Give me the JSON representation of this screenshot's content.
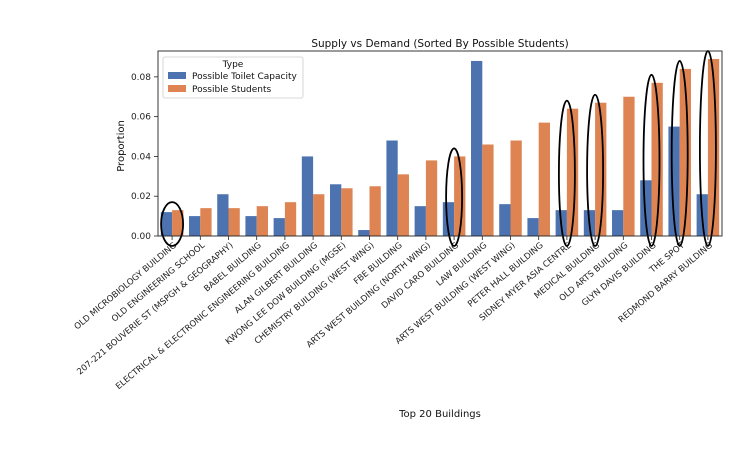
{
  "chart_data": {
    "type": "bar",
    "title": "Supply vs Demand (Sorted By Possible Students)",
    "xlabel": "Top 20 Buildings",
    "ylabel": "Proportion",
    "ylim": [
      0,
      0.093
    ],
    "yticks": [
      "0.00",
      "0.02",
      "0.04",
      "0.06",
      "0.08"
    ],
    "legend": {
      "title": "Type",
      "position": "top-left"
    },
    "categories": [
      "OLD MICROBIOLOGY BUILDING",
      "OLD ENGINEERING SCHOOL",
      "207-221 BOUVERIE ST (MSPGH & GEOGRAPHY)",
      "BABEL BUILDING",
      "ELECTRICAL & ELECTRONIC ENGINEERING BUILDING",
      "ALAN GILBERT BUILDING",
      "KWONG LEE DOW BUILDING (MGSE)",
      "CHEMISTRY BUILDING (WEST WING)",
      "FBE BUILDING",
      "ARTS WEST BUILDING (NORTH WING)",
      "DAVID CARO BUILDING",
      "LAW BUILDING",
      "ARTS WEST BUILDING (WEST WING)",
      "PETER HALL BUILDING",
      "SIDNEY MYER ASIA CENTRE",
      "MEDICAL BUILDING",
      "OLD ARTS BUILDING",
      "GLYN DAVIS BUILDING",
      "THE SPOT",
      "REDMOND BARRY BUILDING"
    ],
    "series": [
      {
        "name": "Possible Toilet Capacity",
        "color": "#4c72b0",
        "values": [
          0.012,
          0.01,
          0.021,
          0.01,
          0.009,
          0.04,
          0.026,
          0.003,
          0.048,
          0.015,
          0.017,
          0.088,
          0.016,
          0.009,
          0.013,
          0.013,
          0.013,
          0.028,
          0.055,
          0.021
        ]
      },
      {
        "name": "Possible Students",
        "color": "#dd8452",
        "values": [
          0.013,
          0.014,
          0.014,
          0.015,
          0.017,
          0.021,
          0.024,
          0.025,
          0.031,
          0.038,
          0.04,
          0.046,
          0.048,
          0.057,
          0.064,
          0.067,
          0.07,
          0.077,
          0.084,
          0.089
        ]
      }
    ],
    "annotations": {
      "type": "circled-highlight",
      "color": "#000000",
      "category_indices": [
        0,
        10,
        14,
        15,
        17,
        18,
        19
      ]
    }
  }
}
